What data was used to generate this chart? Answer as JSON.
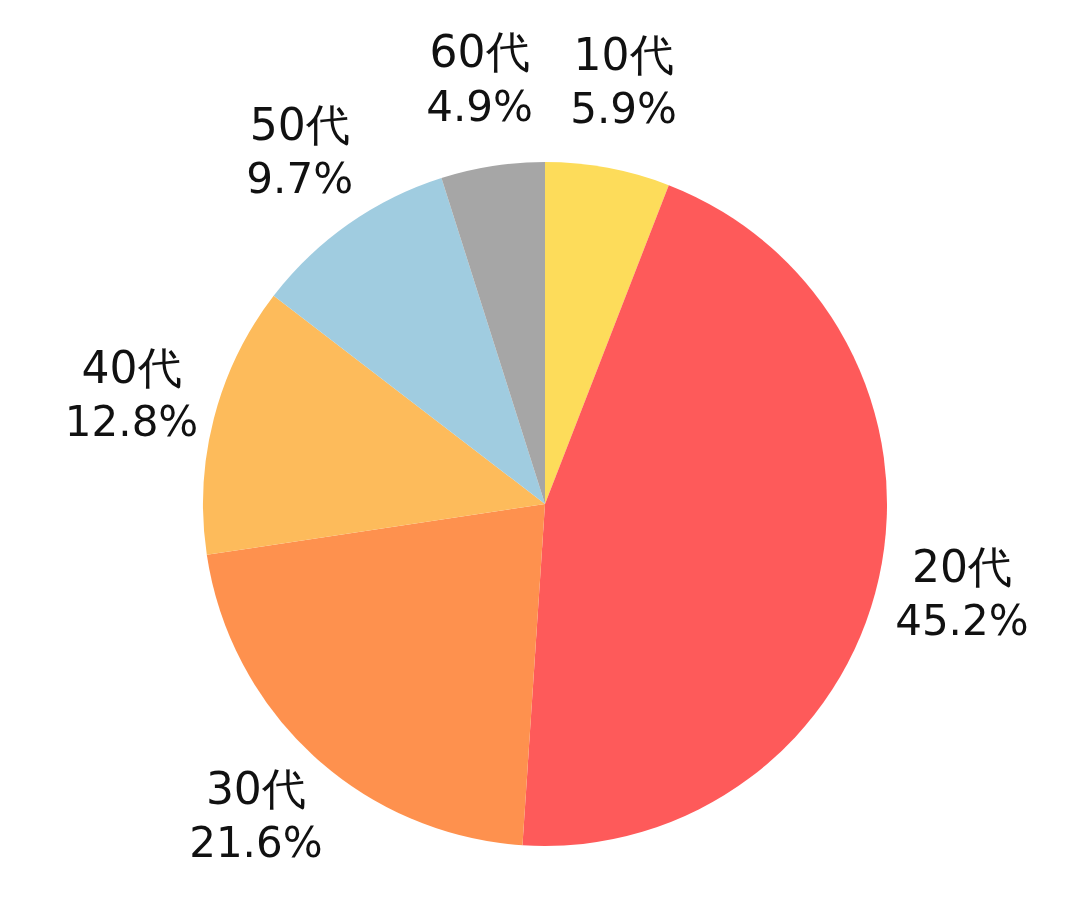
{
  "chart_data": {
    "type": "pie",
    "categories": [
      "10代",
      "20代",
      "30代",
      "40代",
      "50代",
      "60代"
    ],
    "values": [
      5.9,
      45.2,
      21.6,
      12.8,
      9.7,
      4.9
    ],
    "colors": [
      "#fddc5a",
      "#fe5a5a",
      "#fe914e",
      "#fdbb5b",
      "#a0cce0",
      "#a6a6a6"
    ],
    "value_labels": [
      "5.9%",
      "45.2%",
      "21.6%",
      "12.8%",
      "9.7%",
      "4.9%"
    ],
    "legend": false
  }
}
